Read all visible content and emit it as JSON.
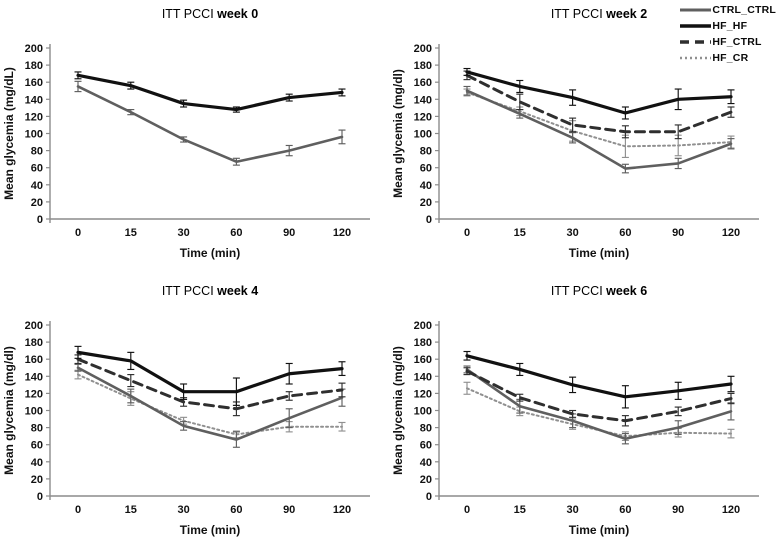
{
  "figure": {
    "background": "#ffffff",
    "axis_color": "#8c8c8c",
    "text_color": "#111111"
  },
  "legend": {
    "items": [
      {
        "label": "CTRL_CTRL",
        "series": "CTRL_CTRL"
      },
      {
        "label": "HF_HF",
        "series": "HF_HF"
      },
      {
        "label": "HF_CTRL",
        "series": "HF_CTRL"
      },
      {
        "label": "HF_CR",
        "series": "HF_CR"
      }
    ]
  },
  "series_styles": {
    "CTRL_CTRL": {
      "color": "#5f5f5f",
      "dash": "",
      "width": 2.6,
      "z": 2
    },
    "HF_HF": {
      "color": "#111111",
      "dash": "",
      "width": 3.2,
      "z": 4
    },
    "HF_CTRL": {
      "color": "#2f2f2f",
      "dash": "9,6",
      "width": 3,
      "z": 3
    },
    "HF_CR": {
      "color": "#909090",
      "dash": "2,3",
      "width": 2,
      "z": 1
    }
  },
  "chart_data": [
    {
      "type": "line",
      "title_regular": "ITT PCCI",
      "title_bold": "week 0",
      "xlabel": "Time (min)",
      "ylabel": "Mean glycemia (mg/dL)",
      "categories": [
        "0",
        "15",
        "30",
        "60",
        "90",
        "120"
      ],
      "ylim": [
        0,
        200
      ],
      "ytick_step": 20,
      "grid": false,
      "series": [
        {
          "name": "CTRL_CTRL",
          "values": [
            155,
            125,
            93,
            67,
            80,
            96
          ],
          "errors": [
            6,
            3,
            3,
            4,
            6,
            8
          ]
        },
        {
          "name": "HF_HF",
          "values": [
            168,
            156,
            135,
            128,
            142,
            148
          ],
          "errors": [
            4,
            4,
            4,
            3,
            4,
            4
          ]
        }
      ]
    },
    {
      "type": "line",
      "title_regular": "ITT PCCI",
      "title_bold": "week 2",
      "xlabel": "Time (min)",
      "ylabel": "Mean glycemia (mg/dl)",
      "categories": [
        "0",
        "15",
        "30",
        "60",
        "90",
        "120"
      ],
      "ylim": [
        0,
        200
      ],
      "ytick_step": 20,
      "grid": false,
      "series": [
        {
          "name": "CTRL_CTRL",
          "values": [
            150,
            123,
            95,
            59,
            65,
            88
          ],
          "errors": [
            5,
            5,
            6,
            5,
            6,
            6
          ]
        },
        {
          "name": "HF_HF",
          "values": [
            172,
            155,
            142,
            124,
            140,
            143
          ],
          "errors": [
            4,
            7,
            9,
            7,
            12,
            8
          ]
        },
        {
          "name": "HF_CTRL",
          "values": [
            168,
            137,
            110,
            102,
            102,
            125
          ],
          "errors": [
            5,
            9,
            8,
            7,
            8,
            6
          ]
        },
        {
          "name": "HF_CR",
          "values": [
            148,
            126,
            103,
            85,
            86,
            90
          ],
          "errors": [
            4,
            5,
            12,
            13,
            12,
            7
          ]
        }
      ]
    },
    {
      "type": "line",
      "title_regular": "ITT PCCI",
      "title_bold": "week 4",
      "xlabel": "Time (min)",
      "ylabel": "Mean glycemia (mg/dl)",
      "categories": [
        "0",
        "15",
        "30",
        "60",
        "90",
        "120"
      ],
      "ylim": [
        0,
        200
      ],
      "ytick_step": 20,
      "grid": false,
      "series": [
        {
          "name": "CTRL_CTRL",
          "values": [
            150,
            117,
            82,
            66,
            91,
            115
          ],
          "errors": [
            4,
            8,
            5,
            9,
            11,
            10
          ]
        },
        {
          "name": "HF_HF",
          "values": [
            168,
            158,
            122,
            122,
            143,
            149
          ],
          "errors": [
            7,
            10,
            9,
            16,
            12,
            8
          ]
        },
        {
          "name": "HF_CTRL",
          "values": [
            160,
            135,
            110,
            102,
            117,
            124
          ],
          "errors": [
            5,
            7,
            5,
            8,
            5,
            8
          ]
        },
        {
          "name": "HF_CR",
          "values": [
            142,
            114,
            88,
            72,
            81,
            81
          ],
          "errors": [
            5,
            8,
            4,
            4,
            6,
            5
          ]
        }
      ]
    },
    {
      "type": "line",
      "title_regular": "ITT PCCI",
      "title_bold": "week 6",
      "xlabel": "Time (min)",
      "ylabel": "Mean glycemia (mg/dl)",
      "categories": [
        "0",
        "15",
        "30",
        "60",
        "90",
        "120"
      ],
      "ylim": [
        0,
        200
      ],
      "ytick_step": 20,
      "grid": false,
      "series": [
        {
          "name": "CTRL_CTRL",
          "values": [
            148,
            105,
            88,
            67,
            80,
            99
          ],
          "errors": [
            4,
            8,
            8,
            6,
            8,
            10
          ]
        },
        {
          "name": "HF_HF",
          "values": [
            164,
            148,
            130,
            116,
            123,
            131
          ],
          "errors": [
            5,
            7,
            9,
            13,
            10,
            9
          ]
        },
        {
          "name": "HF_CTRL",
          "values": [
            146,
            115,
            96,
            88,
            99,
            114
          ],
          "errors": [
            4,
            4,
            4,
            6,
            5,
            6
          ]
        },
        {
          "name": "HF_CR",
          "values": [
            126,
            99,
            84,
            70,
            74,
            73
          ],
          "errors": [
            7,
            5,
            6,
            5,
            5,
            5
          ]
        }
      ]
    }
  ]
}
